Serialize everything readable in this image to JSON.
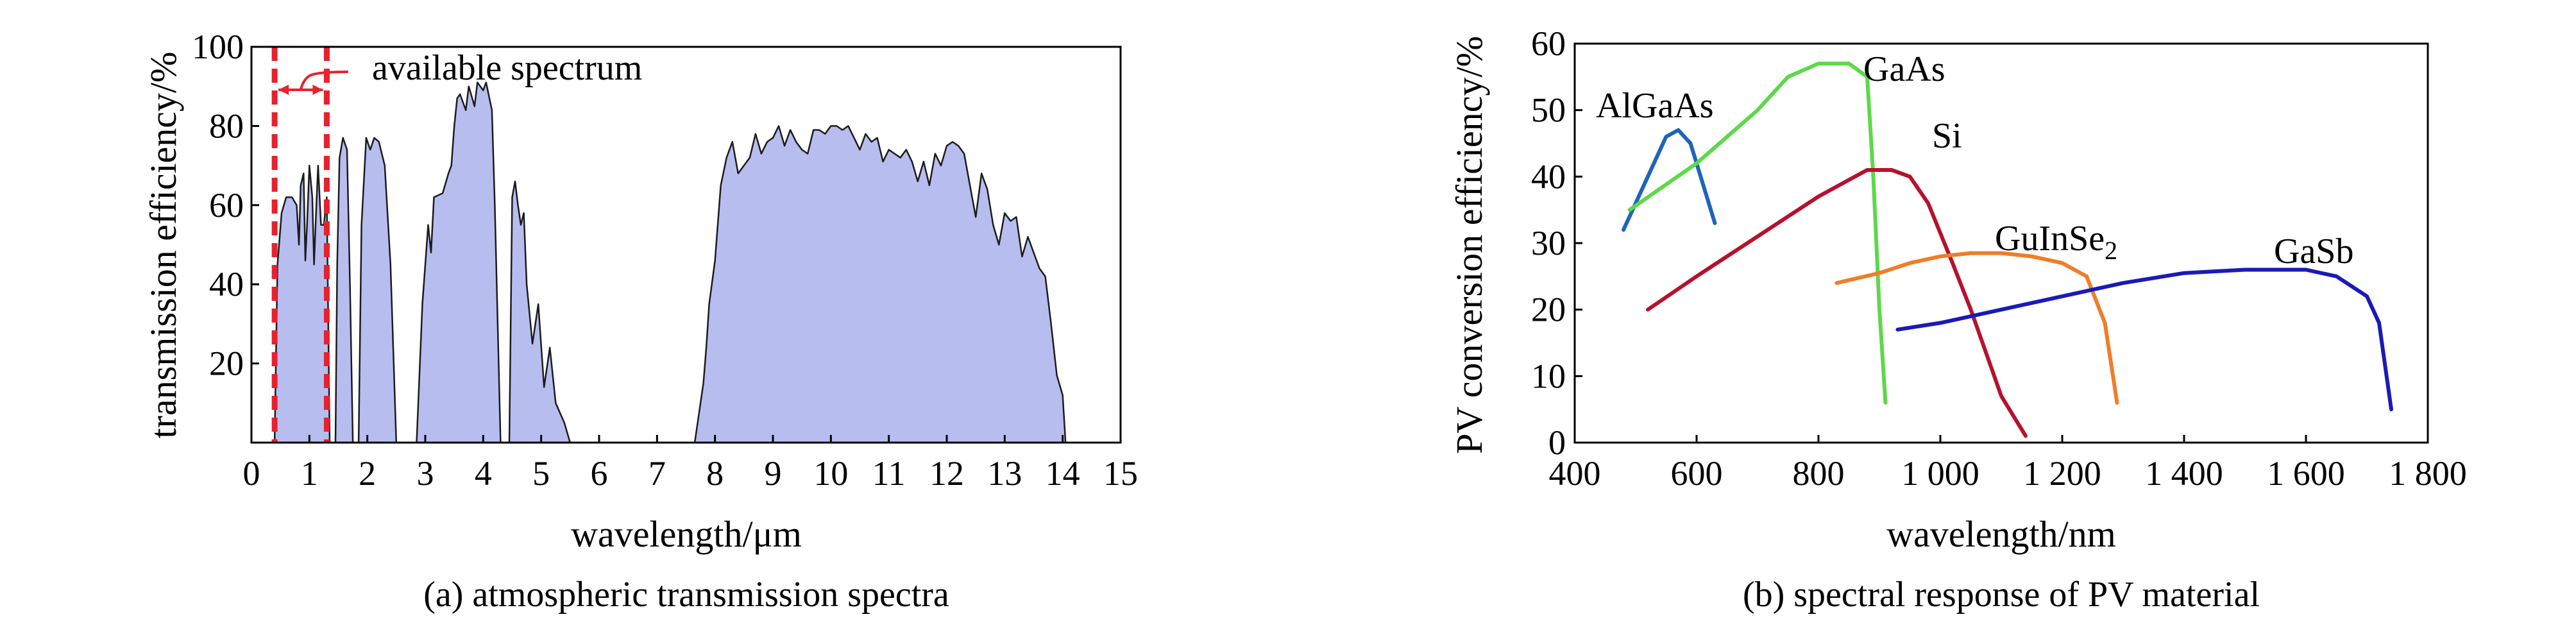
{
  "colors": {
    "fill": "#b8bdf0",
    "outline": "#1c1c1c",
    "marker": "#e8212e",
    "AlGaAs": "#1f64b8",
    "GaAs": "#5ed84a",
    "Si": "#b5122d",
    "GuInSe2": "#f07d28",
    "GaSb": "#1a1ab8"
  },
  "chart_data": [
    {
      "type": "area",
      "caption": "(a) atmospheric transmission spectra",
      "xlabel": "wavelength/μm",
      "ylabel": "transmission efficiency/%",
      "xlim": [
        0,
        15
      ],
      "ylim": [
        0,
        100
      ],
      "xticks": [
        "0",
        "1",
        "2",
        "3",
        "4",
        "5",
        "6",
        "7",
        "8",
        "9",
        "10",
        "11",
        "12",
        "13",
        "14",
        "15"
      ],
      "yticks": [
        "20",
        "40",
        "60",
        "80",
        "100"
      ],
      "annotation": "available spectrum",
      "available_range": [
        0.4,
        1.3
      ],
      "grid": false,
      "bands": [
        [
          [
            0.4,
            0
          ],
          [
            0.45,
            45
          ],
          [
            0.52,
            58
          ],
          [
            0.6,
            62
          ],
          [
            0.7,
            62
          ],
          [
            0.78,
            60
          ],
          [
            0.82,
            50
          ],
          [
            0.85,
            65
          ],
          [
            0.9,
            68
          ],
          [
            0.93,
            46
          ],
          [
            0.96,
            55
          ],
          [
            1.0,
            70
          ],
          [
            1.05,
            62
          ],
          [
            1.08,
            45
          ],
          [
            1.12,
            60
          ],
          [
            1.15,
            70
          ],
          [
            1.2,
            55
          ],
          [
            1.25,
            55
          ],
          [
            1.3,
            62
          ],
          [
            1.35,
            0
          ]
        ],
        [
          [
            1.45,
            0
          ],
          [
            1.48,
            45
          ],
          [
            1.52,
            72
          ],
          [
            1.58,
            77
          ],
          [
            1.65,
            74
          ],
          [
            1.7,
            40
          ],
          [
            1.75,
            0
          ]
        ],
        [
          [
            1.85,
            0
          ],
          [
            1.9,
            55
          ],
          [
            1.98,
            77
          ],
          [
            2.05,
            74
          ],
          [
            2.12,
            77
          ],
          [
            2.2,
            76
          ],
          [
            2.3,
            70
          ],
          [
            2.4,
            45
          ],
          [
            2.5,
            0
          ]
        ],
        [
          [
            2.85,
            0
          ],
          [
            2.95,
            35
          ],
          [
            3.05,
            55
          ],
          [
            3.1,
            48
          ],
          [
            3.15,
            62
          ],
          [
            3.3,
            63
          ],
          [
            3.4,
            68
          ],
          [
            3.45,
            70
          ],
          [
            3.5,
            80
          ],
          [
            3.55,
            87
          ],
          [
            3.6,
            88
          ],
          [
            3.7,
            84
          ],
          [
            3.75,
            90
          ],
          [
            3.85,
            85
          ],
          [
            3.9,
            91
          ],
          [
            4.0,
            89
          ],
          [
            4.05,
            91
          ],
          [
            4.15,
            84
          ],
          [
            4.2,
            60
          ],
          [
            4.3,
            0
          ]
        ],
        [
          [
            4.45,
            0
          ],
          [
            4.5,
            62
          ],
          [
            4.55,
            66
          ],
          [
            4.6,
            60
          ],
          [
            4.65,
            55
          ],
          [
            4.7,
            58
          ],
          [
            4.75,
            40
          ],
          [
            4.85,
            25
          ],
          [
            4.95,
            35
          ],
          [
            5.05,
            14
          ],
          [
            5.15,
            24
          ],
          [
            5.25,
            10
          ],
          [
            5.4,
            5
          ],
          [
            5.5,
            0
          ]
        ],
        [
          [
            7.65,
            0
          ],
          [
            7.8,
            15
          ],
          [
            7.85,
            24
          ],
          [
            7.9,
            35
          ],
          [
            8.0,
            46
          ],
          [
            8.1,
            65
          ],
          [
            8.2,
            72
          ],
          [
            8.3,
            76
          ],
          [
            8.4,
            68
          ],
          [
            8.5,
            70
          ],
          [
            8.6,
            72
          ],
          [
            8.7,
            78
          ],
          [
            8.8,
            73
          ],
          [
            8.9,
            76
          ],
          [
            9.0,
            77
          ],
          [
            9.1,
            80
          ],
          [
            9.2,
            75
          ],
          [
            9.3,
            79
          ],
          [
            9.4,
            76
          ],
          [
            9.5,
            74
          ],
          [
            9.6,
            73
          ],
          [
            9.7,
            79
          ],
          [
            9.8,
            79
          ],
          [
            9.9,
            78
          ],
          [
            10.0,
            80
          ],
          [
            10.1,
            80
          ],
          [
            10.2,
            79
          ],
          [
            10.3,
            80
          ],
          [
            10.4,
            77
          ],
          [
            10.5,
            74
          ],
          [
            10.6,
            78
          ],
          [
            10.7,
            76
          ],
          [
            10.8,
            77
          ],
          [
            10.9,
            71
          ],
          [
            11.0,
            74
          ],
          [
            11.1,
            73
          ],
          [
            11.2,
            72
          ],
          [
            11.3,
            74
          ],
          [
            11.4,
            71
          ],
          [
            11.5,
            66
          ],
          [
            11.6,
            71
          ],
          [
            11.7,
            65
          ],
          [
            11.8,
            73
          ],
          [
            11.9,
            70
          ],
          [
            12.0,
            75
          ],
          [
            12.1,
            76
          ],
          [
            12.2,
            75
          ],
          [
            12.3,
            73
          ],
          [
            12.4,
            65
          ],
          [
            12.5,
            57
          ],
          [
            12.6,
            68
          ],
          [
            12.7,
            64
          ],
          [
            12.8,
            55
          ],
          [
            12.9,
            50
          ],
          [
            13.0,
            58
          ],
          [
            13.1,
            56
          ],
          [
            13.2,
            57
          ],
          [
            13.3,
            47
          ],
          [
            13.4,
            52
          ],
          [
            13.5,
            48
          ],
          [
            13.6,
            44
          ],
          [
            13.7,
            42
          ],
          [
            13.8,
            30
          ],
          [
            13.9,
            17
          ],
          [
            14.0,
            12
          ],
          [
            14.05,
            0
          ]
        ]
      ]
    },
    {
      "type": "line",
      "caption": "(b) spectral response of PV material",
      "xlabel": "wavelength/nm",
      "ylabel": "PV conversion efficiency/%",
      "xlim": [
        400,
        1800
      ],
      "ylim": [
        0,
        60
      ],
      "xticks": [
        "400",
        "600",
        "800",
        "1 000",
        "1 200",
        "1 400",
        "1 600",
        "1 800"
      ],
      "yticks": [
        "0",
        "10",
        "20",
        "30",
        "40",
        "50",
        "60"
      ],
      "grid": false,
      "series": [
        {
          "name": "AlGaAs",
          "x": [
            480,
            520,
            550,
            570,
            590,
            610,
            630
          ],
          "y": [
            32,
            40,
            46,
            47,
            45,
            39,
            33
          ]
        },
        {
          "name": "GaAs",
          "x": [
            490,
            600,
            700,
            750,
            800,
            850,
            880,
            890,
            900,
            910
          ],
          "y": [
            35,
            42,
            50,
            55,
            57,
            57,
            55,
            40,
            20,
            6
          ]
        },
        {
          "name": "Si",
          "x": [
            520,
            600,
            700,
            800,
            860,
            880,
            920,
            950,
            980,
            1020,
            1050,
            1100,
            1140
          ],
          "y": [
            20,
            25,
            31,
            37,
            40,
            41,
            41,
            40,
            36,
            27,
            20,
            7,
            1
          ]
        },
        {
          "name": "GuInSe",
          "subscript": "2",
          "x": [
            830,
            900,
            950,
            1000,
            1050,
            1100,
            1150,
            1200,
            1240,
            1270,
            1290
          ],
          "y": [
            24,
            25.5,
            27,
            28,
            28.5,
            28.5,
            28,
            27,
            25,
            18,
            6
          ]
        },
        {
          "name": "GaSb",
          "x": [
            930,
            1000,
            1100,
            1200,
            1300,
            1400,
            1500,
            1600,
            1650,
            1700,
            1720,
            1740
          ],
          "y": [
            17,
            18,
            20,
            22,
            24,
            25.5,
            26,
            26,
            25,
            22,
            18,
            5
          ]
        }
      ]
    }
  ]
}
